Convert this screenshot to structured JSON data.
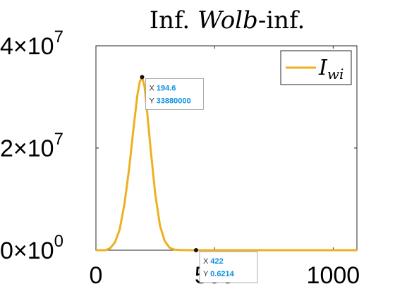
{
  "chart_data": {
    "type": "line",
    "title": {
      "prefix": "Inf.",
      "italic": "Wolb",
      "suffix": "-inf."
    },
    "xlabel": "",
    "ylabel": "",
    "xlim": [
      0,
      1100
    ],
    "ylim": [
      0,
      40000000
    ],
    "x_ticks": [
      0,
      500,
      1000
    ],
    "y_ticks": [
      {
        "value": 0,
        "mantissa": "0",
        "times": "×",
        "base": "10",
        "exp": "0"
      },
      {
        "value": 20000000,
        "mantissa": "2",
        "times": "×",
        "base": "10",
        "exp": "7"
      },
      {
        "value": 40000000,
        "mantissa": "4",
        "times": "×",
        "base": "10",
        "exp": "7"
      }
    ],
    "legend": {
      "placement": "top-right",
      "label_main": "I",
      "label_sub": "wi"
    },
    "series": [
      {
        "name": "I_wi",
        "color": "#EDB120",
        "x": [
          0,
          40,
          60,
          80,
          100,
          120,
          140,
          160,
          175,
          185,
          194.6,
          205,
          215,
          230,
          250,
          270,
          290,
          310,
          330,
          350,
          400,
          422,
          500,
          600,
          700,
          800,
          900,
          1000,
          1100
        ],
        "y": [
          0,
          0,
          400000,
          1500000,
          4000000,
          9000000,
          16000000,
          24500000,
          30500000,
          33000000,
          33880000,
          32000000,
          27500000,
          20000000,
          11000000,
          4800000,
          1800000,
          500000,
          120000,
          25000,
          0.6214,
          0.6214,
          0,
          0,
          0,
          0,
          0,
          0,
          0
        ]
      }
    ],
    "datatips": [
      {
        "x_label": "X",
        "x_value": "194.6",
        "y_label": "Y",
        "y_value": "33880000",
        "x": 194.6,
        "y": 33880000
      },
      {
        "x_label": "X",
        "x_value": "422",
        "y_label": "Y",
        "y_value": "0.6214",
        "x": 422,
        "y": 0.6214
      }
    ]
  }
}
